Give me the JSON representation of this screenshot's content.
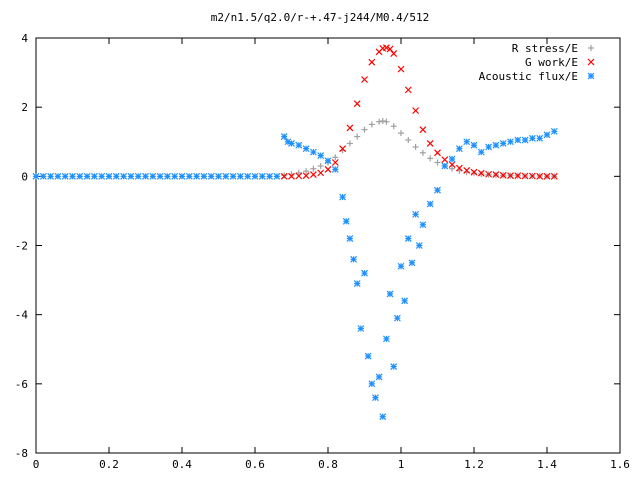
{
  "chart_data": {
    "type": "scatter",
    "title": "m2/n1.5/q2.0/r-+.47-j244/M0.4/512",
    "xlabel": "",
    "ylabel": "",
    "xlim": [
      0,
      1.6
    ],
    "ylim": [
      -8,
      4
    ],
    "xticks": [
      "0",
      "0.2",
      "0.4",
      "0.6",
      "0.8",
      "1",
      "1.2",
      "1.4",
      "1.6"
    ],
    "yticks": [
      "4",
      "2",
      "0",
      "-2",
      "-4",
      "-6",
      "-8"
    ],
    "grid": false,
    "legend_position": "top-right",
    "series": [
      {
        "name": "R stress/E",
        "marker": "plus",
        "color": "#a0a0a0",
        "x": [
          0.68,
          0.7,
          0.72,
          0.74,
          0.76,
          0.78,
          0.8,
          0.82,
          0.84,
          0.86,
          0.88,
          0.9,
          0.92,
          0.94,
          0.95,
          0.96,
          0.98,
          1.0,
          1.02,
          1.04,
          1.06,
          1.08,
          1.1,
          1.12,
          1.14,
          1.16,
          1.18,
          1.2,
          1.22,
          1.24,
          1.26,
          1.28,
          1.3,
          1.32,
          1.34,
          1.36,
          1.38,
          1.4,
          1.42
        ],
        "y": [
          0.03,
          0.06,
          0.1,
          0.15,
          0.22,
          0.3,
          0.4,
          0.55,
          0.75,
          0.95,
          1.15,
          1.35,
          1.5,
          1.58,
          1.6,
          1.58,
          1.45,
          1.25,
          1.05,
          0.85,
          0.68,
          0.52,
          0.4,
          0.3,
          0.22,
          0.16,
          0.12,
          0.09,
          0.07,
          0.05,
          0.04,
          0.03,
          0.02,
          0.02,
          0.01,
          0.01,
          0.01,
          0.0,
          0.0
        ]
      },
      {
        "name": "G work/E",
        "marker": "cross",
        "color": "#ff0000",
        "x": [
          0.68,
          0.7,
          0.72,
          0.74,
          0.76,
          0.78,
          0.8,
          0.82,
          0.84,
          0.86,
          0.88,
          0.9,
          0.92,
          0.94,
          0.95,
          0.96,
          0.97,
          0.98,
          1.0,
          1.02,
          1.04,
          1.06,
          1.08,
          1.1,
          1.12,
          1.14,
          1.16,
          1.18,
          1.2,
          1.22,
          1.24,
          1.26,
          1.28,
          1.3,
          1.32,
          1.34,
          1.36,
          1.38,
          1.4,
          1.42
        ],
        "y": [
          0.0,
          0.0,
          0.01,
          0.02,
          0.05,
          0.1,
          0.2,
          0.4,
          0.8,
          1.4,
          2.1,
          2.8,
          3.3,
          3.6,
          3.7,
          3.72,
          3.68,
          3.55,
          3.1,
          2.5,
          1.9,
          1.35,
          0.95,
          0.68,
          0.48,
          0.34,
          0.24,
          0.17,
          0.12,
          0.09,
          0.06,
          0.05,
          0.03,
          0.02,
          0.02,
          0.01,
          0.01,
          0.0,
          0.0,
          0.0
        ]
      },
      {
        "name": "Acoustic flux/E",
        "marker": "star",
        "color": "#1e90ff",
        "x": [
          0.0,
          0.02,
          0.04,
          0.06,
          0.08,
          0.1,
          0.12,
          0.14,
          0.16,
          0.18,
          0.2,
          0.22,
          0.24,
          0.26,
          0.28,
          0.3,
          0.32,
          0.34,
          0.36,
          0.38,
          0.4,
          0.42,
          0.44,
          0.46,
          0.48,
          0.5,
          0.52,
          0.54,
          0.56,
          0.58,
          0.6,
          0.62,
          0.64,
          0.66,
          0.68,
          0.69,
          0.7,
          0.72,
          0.74,
          0.76,
          0.78,
          0.8,
          0.82,
          0.84,
          0.85,
          0.86,
          0.87,
          0.88,
          0.89,
          0.9,
          0.91,
          0.92,
          0.93,
          0.94,
          0.95,
          0.96,
          0.97,
          0.98,
          0.99,
          1.0,
          1.01,
          1.02,
          1.03,
          1.04,
          1.05,
          1.06,
          1.08,
          1.1,
          1.12,
          1.14,
          1.16,
          1.18,
          1.2,
          1.22,
          1.24,
          1.26,
          1.28,
          1.3,
          1.32,
          1.34,
          1.36,
          1.38,
          1.4,
          1.42
        ],
        "y": [
          0,
          0,
          0,
          0,
          0,
          0,
          0,
          0,
          0,
          0,
          0,
          0,
          0,
          0,
          0,
          0,
          0,
          0,
          0,
          0,
          0,
          0,
          0,
          0,
          0,
          0,
          0,
          0,
          0,
          0,
          0,
          0,
          0,
          0,
          1.15,
          1.0,
          0.95,
          0.9,
          0.8,
          0.7,
          0.6,
          0.45,
          0.2,
          -0.6,
          -1.3,
          -1.8,
          -2.4,
          -3.1,
          -4.4,
          -2.8,
          -5.2,
          -6.0,
          -6.4,
          -5.8,
          -6.95,
          -4.7,
          -3.4,
          -5.5,
          -4.1,
          -2.6,
          -3.6,
          -1.8,
          -2.5,
          -1.1,
          -2.0,
          -1.4,
          -0.8,
          -0.4,
          0.3,
          0.5,
          0.8,
          1.0,
          0.9,
          0.7,
          0.85,
          0.9,
          0.95,
          1.0,
          1.05,
          1.05,
          1.1,
          1.1,
          1.2,
          1.3
        ]
      }
    ]
  }
}
